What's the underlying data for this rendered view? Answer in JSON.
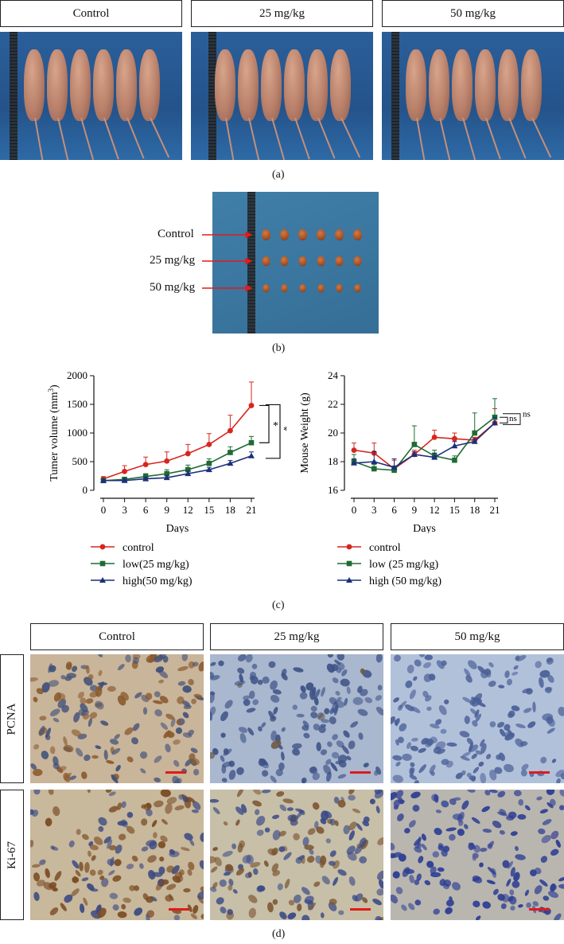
{
  "panel_a": {
    "groups": [
      "Control",
      "25 mg/kg",
      "50 mg/kg"
    ],
    "label": "(a)"
  },
  "panel_b": {
    "row_labels": [
      "Control",
      "25 mg/kg",
      "50 mg/kg"
    ],
    "label": "(b)"
  },
  "panel_c": {
    "label": "(c)"
  },
  "panel_d": {
    "groups": [
      "Control",
      "25 mg/kg",
      "50 mg/kg"
    ],
    "stains": [
      "PCNA",
      "Ki-67"
    ],
    "label": "(d)"
  },
  "colors": {
    "control": "#d7261e",
    "low": "#1f6b33",
    "high": "#1c2f7a"
  },
  "chart_data": [
    {
      "type": "line",
      "title": "",
      "xlabel": "Days",
      "ylabel": "Tumer volume (mm",
      "ylabel_sup": "3",
      "ylabel_close": ")",
      "x": [
        0,
        3,
        6,
        9,
        12,
        15,
        18,
        21
      ],
      "x_ticks": [
        "0",
        "3",
        "6",
        "9",
        "12",
        "15",
        "18",
        "21"
      ],
      "ylim": [
        0,
        2000
      ],
      "y_ticks": [
        "0",
        "500",
        "1000",
        "1500",
        "2000"
      ],
      "series": [
        {
          "name": "control",
          "key": "control",
          "values": [
            200,
            330,
            450,
            510,
            640,
            800,
            1040,
            1480
          ],
          "err": [
            40,
            100,
            130,
            160,
            160,
            190,
            270,
            410
          ],
          "marker": "circle"
        },
        {
          "name": "low(25 mg/kg)",
          "key": "low",
          "values": [
            170,
            190,
            240,
            290,
            360,
            470,
            660,
            830
          ],
          "err": [
            30,
            40,
            50,
            70,
            80,
            80,
            100,
            110
          ],
          "marker": "square"
        },
        {
          "name": "high(50 mg/kg)",
          "key": "high",
          "values": [
            170,
            170,
            200,
            220,
            290,
            360,
            470,
            600
          ],
          "err": [
            20,
            30,
            30,
            40,
            50,
            40,
            50,
            70
          ],
          "marker": "triangle"
        }
      ],
      "annotations": [
        "*",
        "**"
      ]
    },
    {
      "type": "line",
      "title": "",
      "xlabel": "Days",
      "ylabel": "Mouse Weight (g)",
      "x": [
        0,
        3,
        6,
        9,
        12,
        15,
        18,
        21
      ],
      "x_ticks": [
        "0",
        "3",
        "6",
        "9",
        "12",
        "15",
        "18",
        "21"
      ],
      "ylim": [
        16,
        24
      ],
      "y_ticks": [
        "16",
        "18",
        "20",
        "22",
        "24"
      ],
      "series": [
        {
          "name": "control",
          "key": "control",
          "values": [
            18.8,
            18.6,
            17.5,
            18.5,
            19.7,
            19.6,
            19.5,
            20.7
          ],
          "err": [
            0.5,
            0.7,
            0.6,
            0.3,
            0.5,
            0.4,
            0.2,
            1.0
          ],
          "marker": "circle"
        },
        {
          "name": "low (25 mg/kg)",
          "key": "low",
          "values": [
            18.0,
            17.5,
            17.4,
            19.2,
            18.4,
            18.1,
            20.0,
            21.1
          ],
          "err": [
            0.5,
            0.3,
            0.3,
            1.3,
            0.4,
            0.3,
            1.4,
            1.3
          ],
          "marker": "square"
        },
        {
          "name": "high (50 mg/kg)",
          "key": "high",
          "values": [
            17.9,
            18.0,
            17.6,
            18.5,
            18.3,
            19.1,
            19.4,
            20.7
          ],
          "err": [
            0.3,
            0.7,
            0.6,
            0.2,
            0.3,
            0.3,
            0.2,
            0.4
          ],
          "marker": "triangle"
        }
      ],
      "annotations": [
        "ns",
        "ns"
      ]
    }
  ]
}
